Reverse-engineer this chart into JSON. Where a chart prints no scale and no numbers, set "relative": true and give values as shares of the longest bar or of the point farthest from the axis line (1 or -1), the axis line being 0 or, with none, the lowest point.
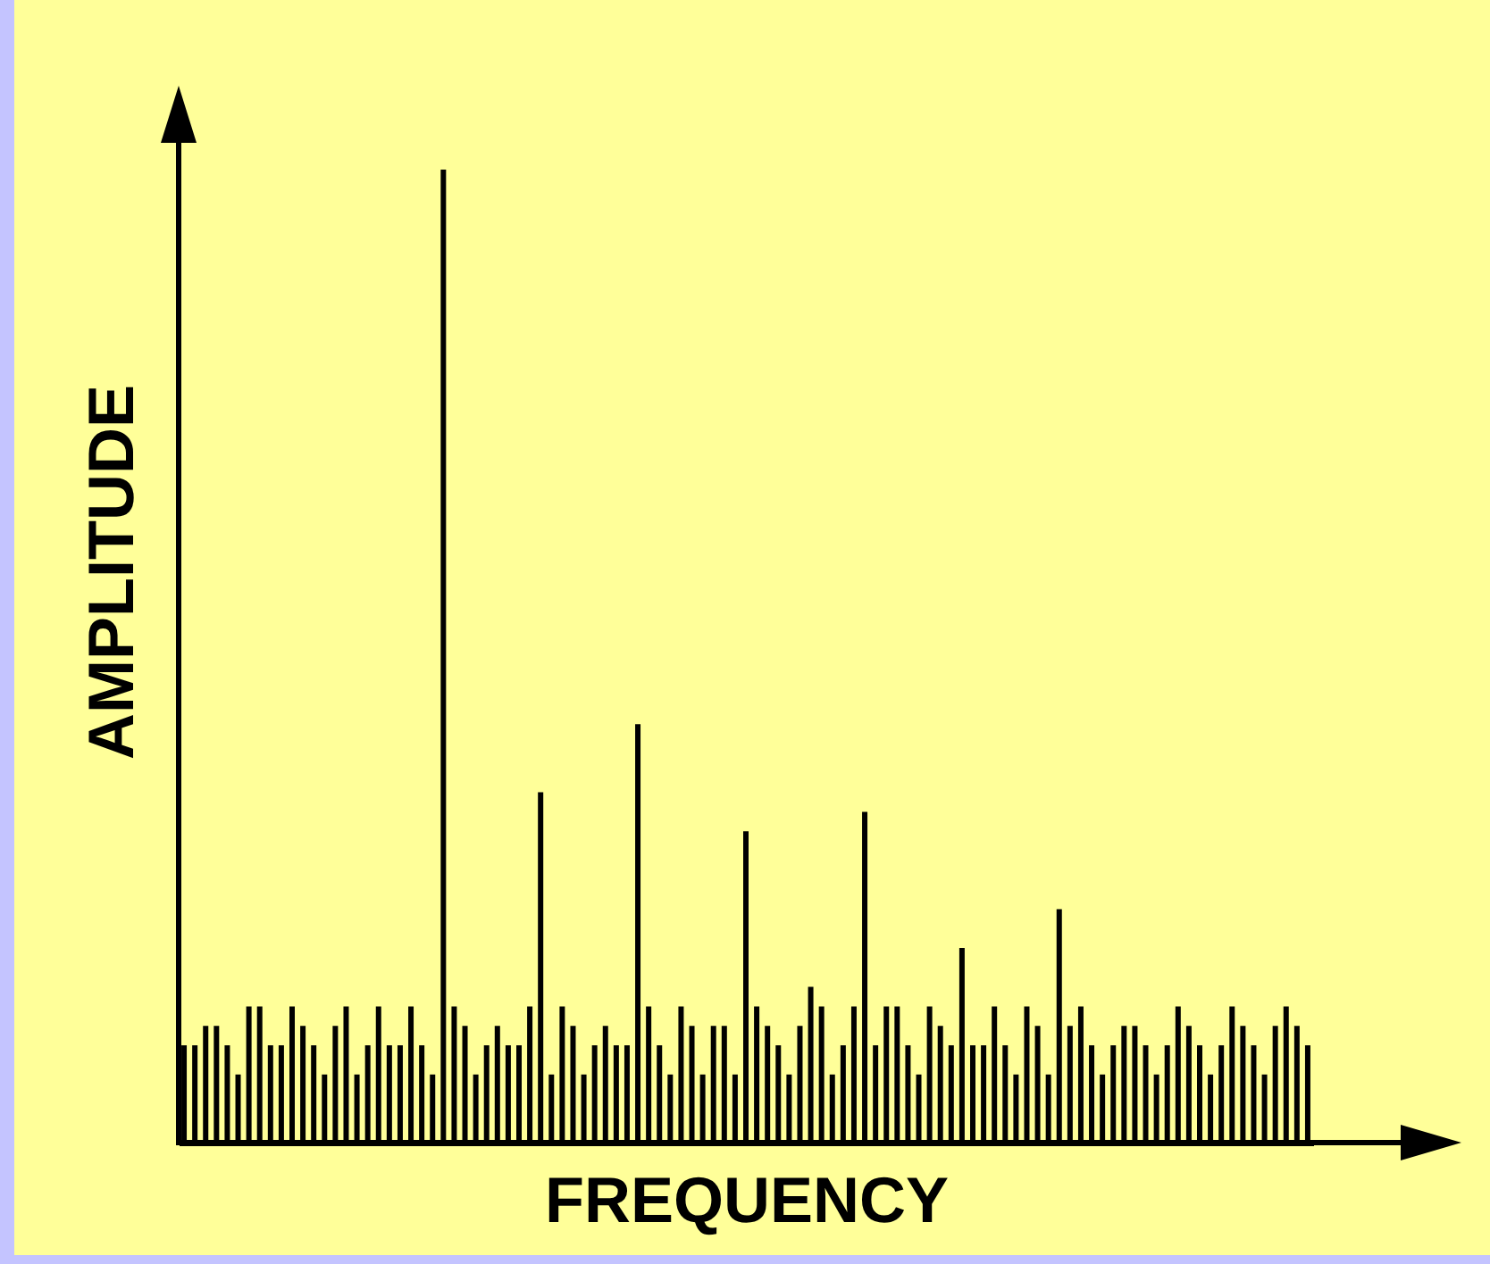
{
  "chart_data": {
    "type": "bar",
    "relative": true,
    "xlabel": "FREQUENCY",
    "ylabel": "AMPLITUDE",
    "color": "#000000",
    "categories": [
      null,
      null,
      null,
      null,
      null,
      null,
      null,
      null,
      null,
      null,
      null,
      null,
      null,
      null,
      null,
      null,
      null,
      null,
      null,
      null,
      null,
      null,
      null,
      null,
      null,
      null,
      null,
      null,
      null,
      null,
      null,
      null,
      null,
      null,
      null,
      null,
      null,
      null,
      null,
      null,
      null,
      null,
      null,
      null,
      null,
      null,
      null,
      null,
      null,
      null,
      null,
      null,
      null,
      null,
      null,
      null,
      null,
      null,
      null,
      null,
      null,
      null,
      null,
      null,
      null,
      null,
      null,
      null,
      null,
      null,
      null,
      null,
      null,
      null,
      null,
      null,
      null,
      null,
      null,
      null,
      null,
      null,
      null,
      null,
      null,
      null,
      null,
      null,
      null,
      null,
      null,
      null,
      null,
      null,
      null,
      null,
      null,
      null,
      null,
      null,
      null,
      null,
      null,
      null,
      null
    ],
    "values": [
      0.1,
      0.1,
      0.12,
      0.12,
      0.1,
      0.07,
      0.14,
      0.14,
      0.1,
      0.1,
      0.14,
      0.12,
      0.1,
      0.07,
      0.12,
      0.14,
      0.07,
      0.1,
      0.14,
      0.1,
      0.1,
      0.14,
      0.1,
      0.07,
      1,
      0.14,
      0.12,
      0.07,
      0.1,
      0.12,
      0.1,
      0.1,
      0.14,
      0.36,
      0.07,
      0.14,
      0.12,
      0.07,
      0.1,
      0.12,
      0.1,
      0.1,
      0.43,
      0.14,
      0.1,
      0.07,
      0.14,
      0.12,
      0.07,
      0.12,
      0.12,
      0.07,
      0.32,
      0.14,
      0.12,
      0.1,
      0.07,
      0.12,
      0.16,
      0.14,
      0.07,
      0.1,
      0.14,
      0.34,
      0.1,
      0.14,
      0.14,
      0.1,
      0.07,
      0.14,
      0.12,
      0.1,
      0.2,
      0.1,
      0.1,
      0.14,
      0.1,
      0.07,
      0.14,
      0.12,
      0.07,
      0.24,
      0.12,
      0.14,
      0.1,
      0.07,
      0.1,
      0.12,
      0.12,
      0.1,
      0.07,
      0.1,
      0.14,
      0.12,
      0.1,
      0.07,
      0.1,
      0.14,
      0.12,
      0.1,
      0.07,
      0.12,
      0.14,
      0.12,
      0.1
    ]
  }
}
